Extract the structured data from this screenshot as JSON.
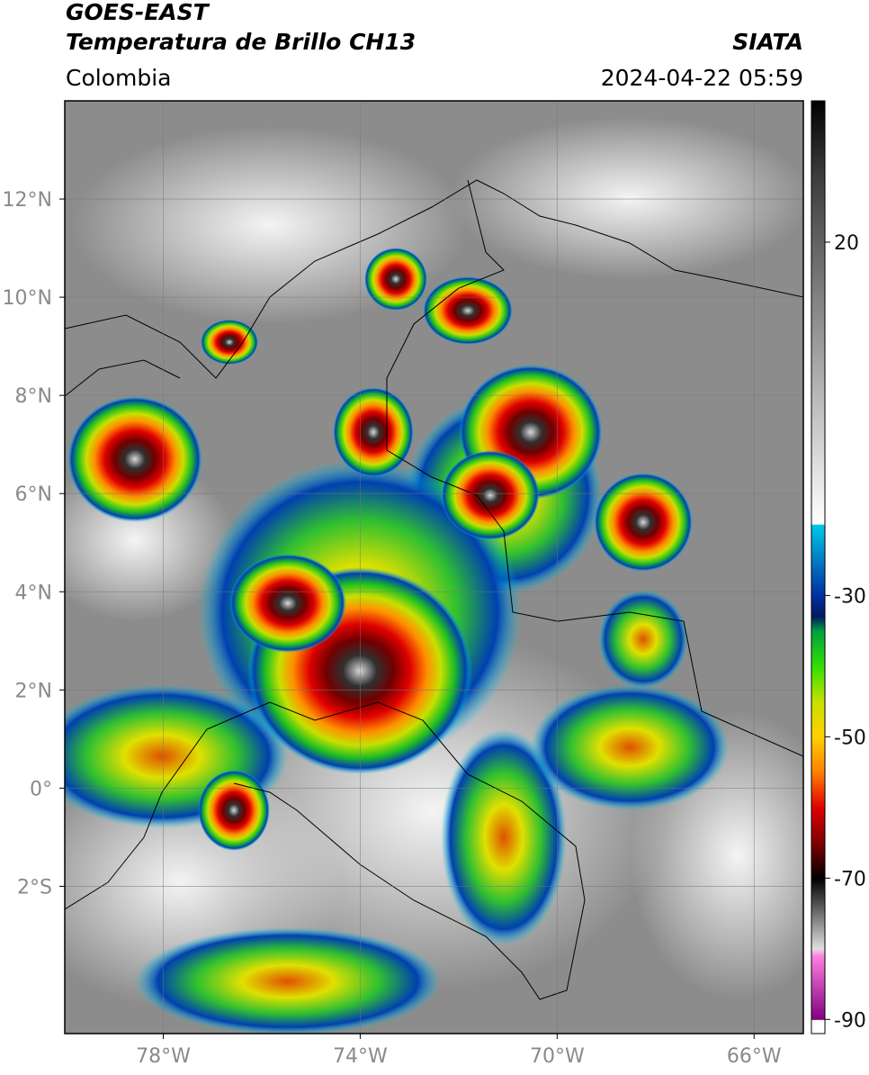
{
  "header": {
    "title": "GOES-EAST",
    "subtitle": "Temperatura de Brillo CH13",
    "region": "Colombia",
    "source": "SIATA",
    "timestamp": "2024-04-22 05:59"
  },
  "map": {
    "lonlim": [
      -80,
      -65
    ],
    "latlim": [
      -5,
      14
    ],
    "lon_ticks": [
      {
        "value": -78,
        "label": "78°W"
      },
      {
        "value": -74,
        "label": "74°W"
      },
      {
        "value": -70,
        "label": "70°W"
      },
      {
        "value": -66,
        "label": "66°W"
      }
    ],
    "lat_ticks": [
      {
        "value": 12,
        "label": "12°N"
      },
      {
        "value": 10,
        "label": "10°N"
      },
      {
        "value": 8,
        "label": "8°N"
      },
      {
        "value": 6,
        "label": "6°N"
      },
      {
        "value": 4,
        "label": "4°N"
      },
      {
        "value": 2,
        "label": "2°N"
      },
      {
        "value": 0,
        "label": "0°"
      },
      {
        "value": -2,
        "label": "2°S"
      }
    ],
    "grid": true,
    "colorbar": {
      "lim": [
        -92,
        40
      ],
      "ticks": [
        20,
        -30,
        -50,
        -70,
        -90
      ],
      "stops": [
        {
          "value": 40,
          "color": "#000000"
        },
        {
          "value": 30,
          "color": "#3a3a3a"
        },
        {
          "value": 10,
          "color": "#8a8a8a"
        },
        {
          "value": -19.9,
          "color": "#ffffff"
        },
        {
          "value": -20,
          "color": "#00c8e8"
        },
        {
          "value": -30,
          "color": "#0030a0"
        },
        {
          "value": -33,
          "color": "#001a60"
        },
        {
          "value": -35,
          "color": "#00a040"
        },
        {
          "value": -40,
          "color": "#30e000"
        },
        {
          "value": -45,
          "color": "#c8e000"
        },
        {
          "value": -50,
          "color": "#ffd000"
        },
        {
          "value": -55,
          "color": "#ff8000"
        },
        {
          "value": -60,
          "color": "#e00000"
        },
        {
          "value": -65,
          "color": "#800000"
        },
        {
          "value": -70,
          "color": "#000000"
        },
        {
          "value": -75,
          "color": "#707070"
        },
        {
          "value": -80,
          "color": "#e0e0e0"
        },
        {
          "value": -81,
          "color": "#ff80e0"
        },
        {
          "value": -90,
          "color": "#800080"
        },
        {
          "value": -90.1,
          "color": "#ffffff"
        },
        {
          "value": -92,
          "color": "#ffffff"
        }
      ]
    }
  }
}
